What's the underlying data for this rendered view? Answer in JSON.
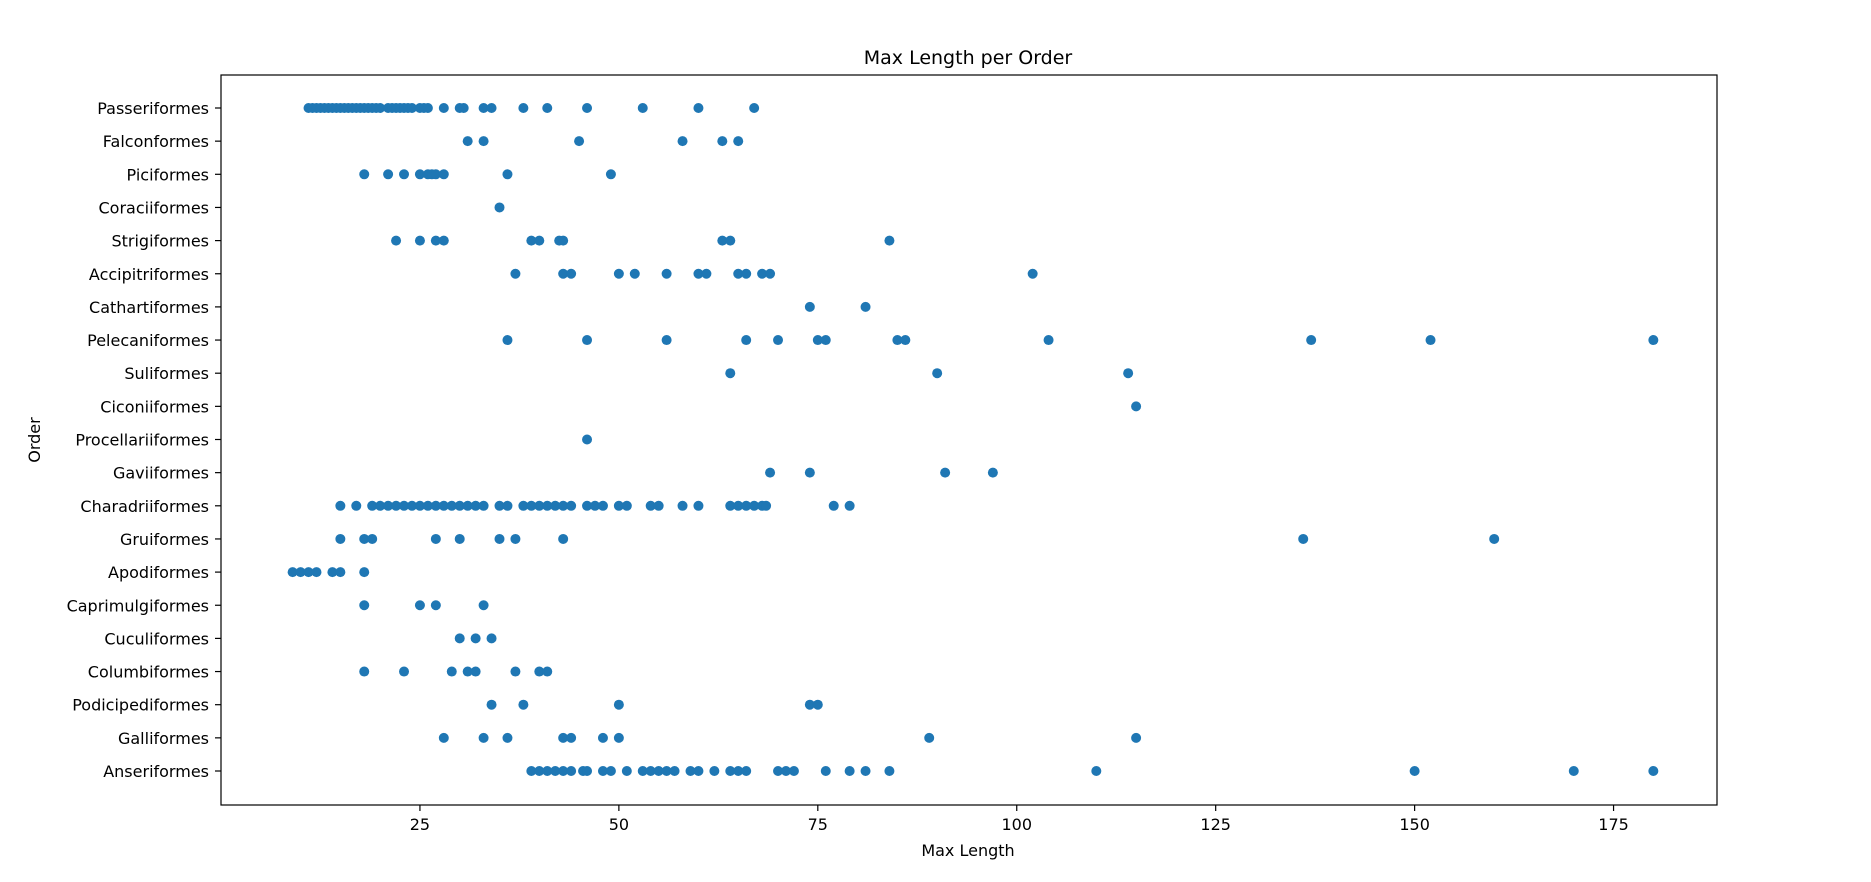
{
  "chart_data": {
    "type": "scatter",
    "title": "Max Length per Order",
    "xlabel": "Max Length",
    "ylabel": "Order",
    "xlim": [
      0,
      188
    ],
    "xticks": [
      25,
      50,
      75,
      100,
      125,
      150,
      175
    ],
    "grid": false,
    "marker_color": "#1f77b4",
    "categories": [
      "Passeriformes",
      "Falconformes",
      "Piciformes",
      "Coraciiformes",
      "Strigiformes",
      "Accipitriformes",
      "Cathartiformes",
      "Pelecaniformes",
      "Suliformes",
      "Ciconiiformes",
      "Procellariiformes",
      "Gaviiformes",
      "Charadriiformes",
      "Gruiformes",
      "Apodiformes",
      "Caprimulgiformes",
      "Cuculiformes",
      "Columbiformes",
      "Podicipediformes",
      "Galliformes",
      "Anseriformes"
    ],
    "points": {
      "Passeriformes": [
        11,
        11.5,
        12,
        12.5,
        13,
        13.5,
        14,
        14.5,
        15,
        15.5,
        16,
        16.5,
        17,
        17.5,
        18,
        18.5,
        19,
        19.5,
        20,
        21,
        21.5,
        22,
        22.5,
        23,
        23.5,
        24,
        25,
        25.5,
        26,
        28,
        30,
        30.5,
        33,
        34,
        38,
        41,
        46,
        53,
        60,
        67
      ],
      "Falconformes": [
        31,
        33,
        45,
        58,
        63,
        65
      ],
      "Piciformes": [
        18,
        21,
        23,
        25,
        26,
        26.5,
        27,
        28,
        36,
        49
      ],
      "Coraciiformes": [
        35
      ],
      "Strigiformes": [
        22,
        25,
        27,
        28,
        39,
        40,
        42.5,
        43,
        63,
        64,
        84
      ],
      "Accipitriformes": [
        37,
        43,
        44,
        50,
        52,
        56,
        60,
        61,
        65,
        66,
        68,
        69,
        102
      ],
      "Cathartiformes": [
        74,
        81
      ],
      "Pelecaniformes": [
        36,
        46,
        56,
        66,
        70,
        75,
        76,
        85,
        86,
        104,
        137,
        152,
        180
      ],
      "Suliformes": [
        64,
        90,
        114
      ],
      "Ciconiiformes": [
        115
      ],
      "Procellariiformes": [
        46
      ],
      "Gaviiformes": [
        69,
        74,
        91,
        97
      ],
      "Charadriiformes": [
        15,
        17,
        19,
        20,
        21,
        22,
        23,
        24,
        25,
        26,
        27,
        28,
        29,
        30,
        31,
        32,
        33,
        35,
        36,
        38,
        39,
        40,
        41,
        42,
        43,
        44,
        46,
        47,
        48,
        50,
        51,
        54,
        55,
        58,
        60,
        64,
        65,
        66,
        67,
        68,
        68.5,
        77,
        79
      ],
      "Gruiformes": [
        15,
        18,
        19,
        27,
        30,
        35,
        37,
        43,
        136,
        160
      ],
      "Apodiformes": [
        9,
        10,
        11,
        12,
        14,
        15,
        18
      ],
      "Caprimulgiformes": [
        18,
        25,
        27,
        33
      ],
      "Cuculiformes": [
        30,
        32,
        34
      ],
      "Columbiformes": [
        18,
        23,
        29,
        31,
        32,
        37,
        40,
        41
      ],
      "Podicipediformes": [
        34,
        38,
        50,
        74,
        75
      ],
      "Galliformes": [
        28,
        33,
        36,
        43,
        44,
        48,
        50,
        89,
        115
      ],
      "Anseriformes": [
        39,
        40,
        41,
        42,
        43,
        44,
        45.5,
        46,
        48,
        49,
        51,
        53,
        54,
        55,
        56,
        57,
        59,
        60,
        62,
        64,
        65,
        66,
        70,
        71,
        72,
        76,
        79,
        81,
        84,
        110,
        150,
        170,
        180
      ]
    }
  }
}
